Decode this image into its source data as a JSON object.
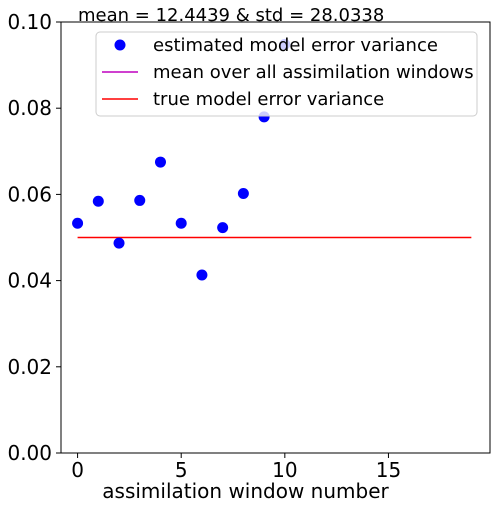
{
  "chart_data": {
    "type": "scatter",
    "title": "mean = 12.4439 & std = 28.0338",
    "xlabel": "assimilation window number",
    "ylabel": "",
    "xlim": [
      -0.8,
      19.9
    ],
    "ylim": [
      0.0,
      0.1
    ],
    "xticks": [
      0,
      5,
      10,
      15
    ],
    "yticks": [
      0.0,
      0.02,
      0.04,
      0.06,
      0.08,
      0.1
    ],
    "xtick_labels": [
      "0",
      "5",
      "10",
      "15"
    ],
    "ytick_labels": [
      "0.00",
      "0.02",
      "0.04",
      "0.06",
      "0.08",
      "0.10"
    ],
    "grid": false,
    "legend_position": "top-right",
    "series": [
      {
        "name": "estimated model error variance",
        "kind": "scatter",
        "color": "#0000ff",
        "x": [
          0,
          1,
          2,
          3,
          4,
          5,
          6,
          7,
          8,
          9,
          10
        ],
        "y": [
          0.0533,
          0.0584,
          0.0487,
          0.0586,
          0.0675,
          0.0533,
          0.0413,
          0.0523,
          0.0602,
          0.078,
          0.0948
        ]
      },
      {
        "name": "mean over all assimilation windows",
        "kind": "line",
        "color": "#bf00bf",
        "x": [],
        "y": []
      },
      {
        "name": "true model error variance",
        "kind": "line",
        "color": "#ff0000",
        "x": [
          0,
          19
        ],
        "y": [
          0.05,
          0.05
        ]
      }
    ]
  }
}
